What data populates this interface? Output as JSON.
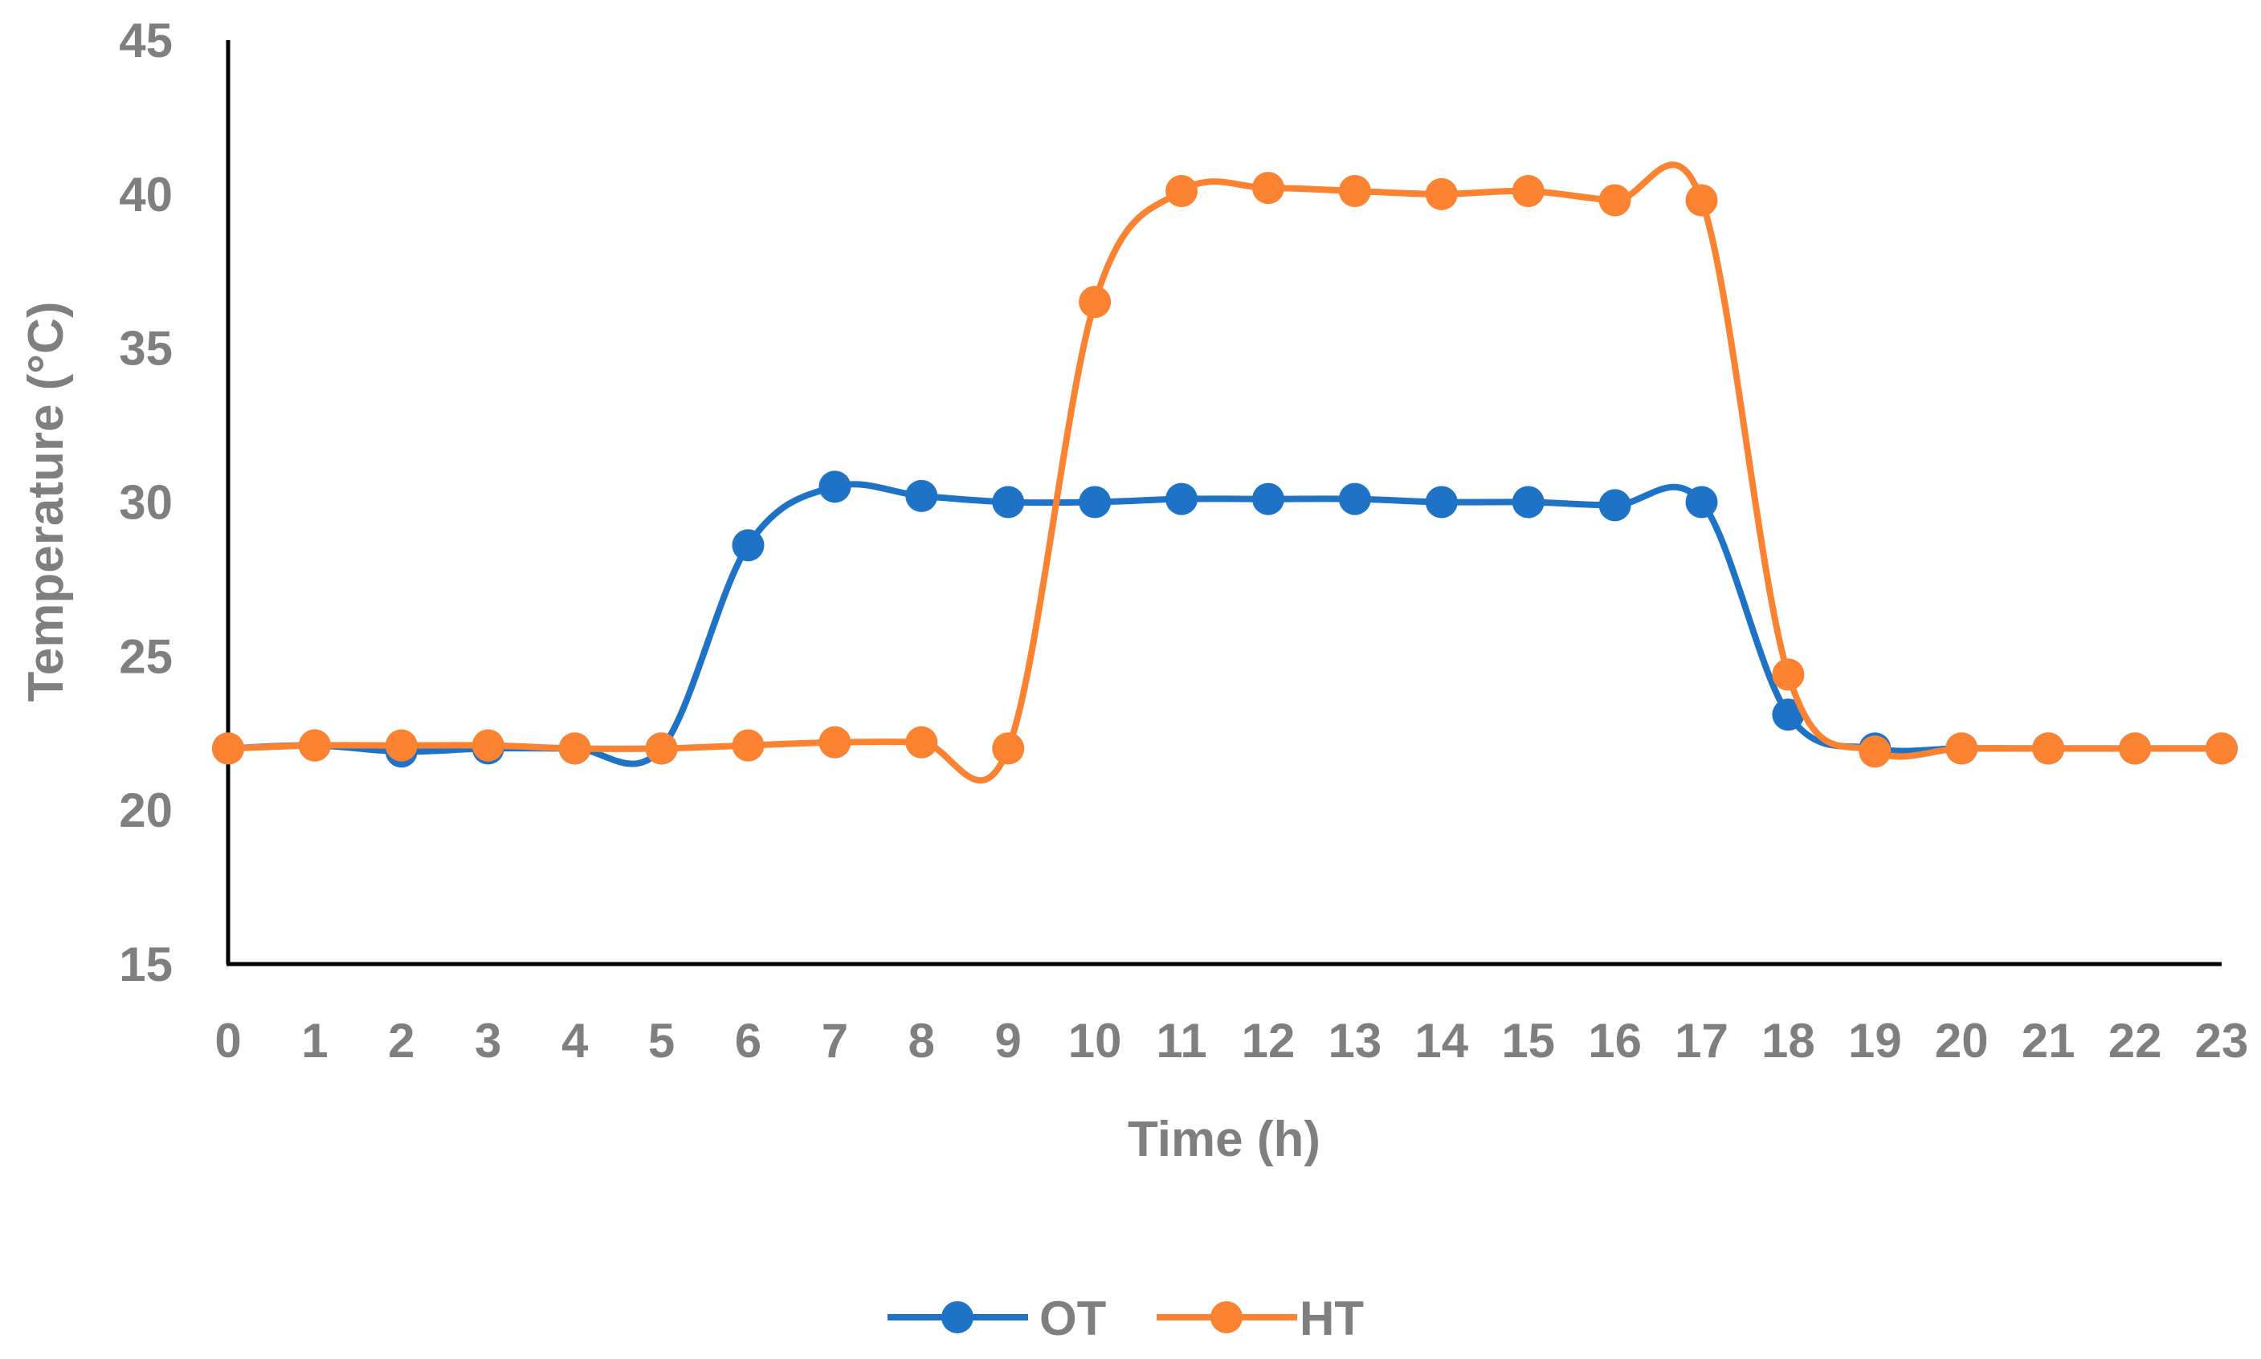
{
  "chart_data": {
    "type": "line",
    "title": "",
    "xlabel": "Time (h)",
    "ylabel": "Temperature (°C)",
    "x": [
      0,
      1,
      2,
      3,
      4,
      5,
      6,
      7,
      8,
      9,
      10,
      11,
      12,
      13,
      14,
      15,
      16,
      17,
      18,
      19,
      20,
      21,
      22,
      23
    ],
    "xticks": [
      "0",
      "1",
      "2",
      "3",
      "4",
      "5",
      "6",
      "7",
      "8",
      "9",
      "10",
      "11",
      "12",
      "13",
      "14",
      "15",
      "16",
      "17",
      "18",
      "19",
      "20",
      "21",
      "22",
      "23"
    ],
    "yticks": [
      "15",
      "20",
      "25",
      "30",
      "35",
      "40",
      "45"
    ],
    "xlim": [
      0,
      23
    ],
    "ylim": [
      15,
      45
    ],
    "grid": false,
    "legend_position": "bottom",
    "series": [
      {
        "name": "OT",
        "color": "#1f73c6",
        "values": [
          22.0,
          22.1,
          21.9,
          22.0,
          22.0,
          22.0,
          28.6,
          30.5,
          30.2,
          30.0,
          30.0,
          30.1,
          30.1,
          30.1,
          30.0,
          30.0,
          29.9,
          30.0,
          23.1,
          22.0,
          22.0,
          22.0,
          22.0,
          22.0
        ]
      },
      {
        "name": "HT",
        "color": "#fb8230",
        "values": [
          22.0,
          22.1,
          22.1,
          22.1,
          22.0,
          22.0,
          22.1,
          22.2,
          22.2,
          22.0,
          36.5,
          40.1,
          40.2,
          40.1,
          40.0,
          40.1,
          39.8,
          39.8,
          24.4,
          21.9,
          22.0,
          22.0,
          22.0,
          22.0
        ]
      }
    ]
  }
}
